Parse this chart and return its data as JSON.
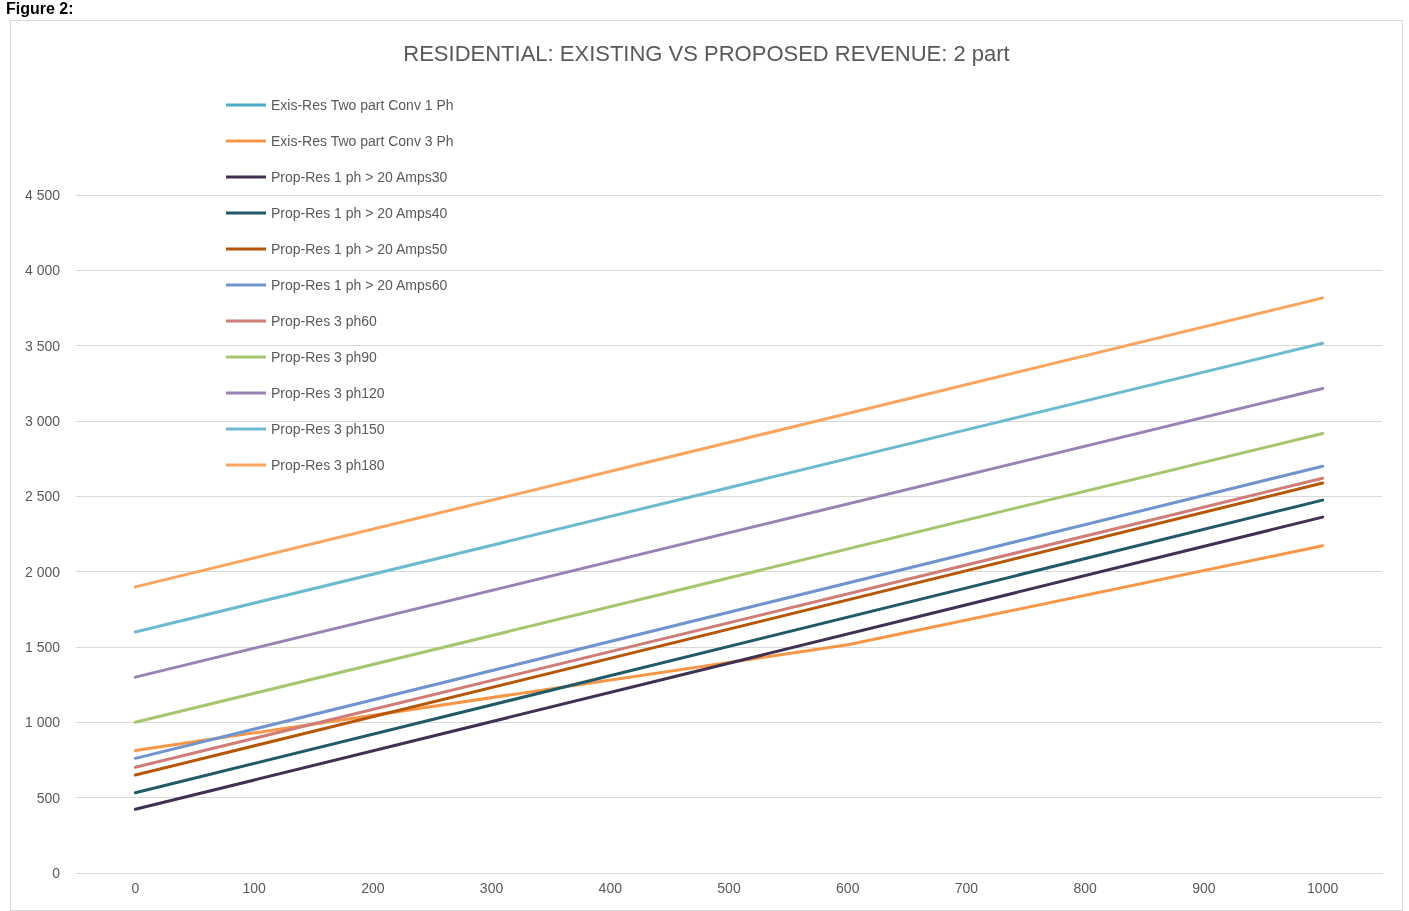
{
  "chart_data": {
    "type": "line",
    "title": "RESIDENTIAL: EXISTING VS PROPOSED REVENUE: 2 part",
    "annotations": [
      "Figure 2:"
    ],
    "xlim": [
      -50,
      1050
    ],
    "xticks": [
      0,
      100,
      200,
      300,
      400,
      500,
      600,
      700,
      800,
      900,
      1000
    ],
    "ylim": [
      0,
      4500
    ],
    "yticks": [
      0,
      500,
      {
        "value": 1000,
        "label": "1 000"
      },
      {
        "value": 1500,
        "label": "1 500"
      },
      {
        "value": 2000,
        "label": "2 000"
      },
      {
        "value": 2500,
        "label": "2 500"
      },
      {
        "value": 3000,
        "label": "3 000"
      },
      {
        "value": 3500,
        "label": "3 500"
      },
      {
        "value": 4000,
        "label": "4 000"
      },
      {
        "value": 4500,
        "label": "4 500"
      }
    ],
    "grid": "y",
    "legend": "top left",
    "marker": "none",
    "line_style": "solid",
    "series": [
      {
        "name": "Exis-Res Two part Conv 1 Ph",
        "color": "#4bacc6"
      },
      {
        "name": "Exis-Res Two part Conv 3 Ph",
        "color": "#f79646",
        "x": [
          0,
          600,
          1000
        ],
        "values": [
          813,
          1515,
          2172
        ]
      },
      {
        "name": "Prop-Res 1 ph > 20 Amps30",
        "color": "#403152",
        "x": [
          0,
          1000
        ],
        "values": [
          423,
          2362
        ]
      },
      {
        "name": "Prop-Res 1 ph > 20 Amps40",
        "color": "#215968",
        "x": [
          0,
          1000
        ],
        "values": [
          533,
          2475
        ]
      },
      {
        "name": "Prop-Res 1 ph > 20 Amps50",
        "color": "#b65708",
        "x": [
          0,
          1000
        ],
        "values": [
          650,
          2588
        ]
      },
      {
        "name": "Prop-Res 1 ph > 20 Amps60",
        "color": "#7094cd",
        "x": [
          0,
          1000
        ],
        "values": [
          761,
          2700
        ]
      },
      {
        "name": "Prop-Res 3 ph60",
        "color": "#d07c77",
        "x": [
          0,
          1000
        ],
        "values": [
          702,
          2620
        ]
      },
      {
        "name": "Prop-Res 3 ph90",
        "color": "#a5c66e",
        "x": [
          0,
          1000
        ],
        "values": [
          1001,
          2917
        ]
      },
      {
        "name": "Prop-Res 3 ph120",
        "color": "#9983b5",
        "x": [
          0,
          1000
        ],
        "values": [
          1300,
          3216
        ]
      },
      {
        "name": "Prop-Res 3 ph150",
        "color": "#6cbad0",
        "x": [
          0,
          1000
        ],
        "values": [
          1600,
          3516
        ]
      },
      {
        "name": "Prop-Res 3 ph180",
        "color": "#f9a45f",
        "x": [
          0,
          1000
        ],
        "values": [
          1899,
          3817
        ]
      }
    ]
  }
}
